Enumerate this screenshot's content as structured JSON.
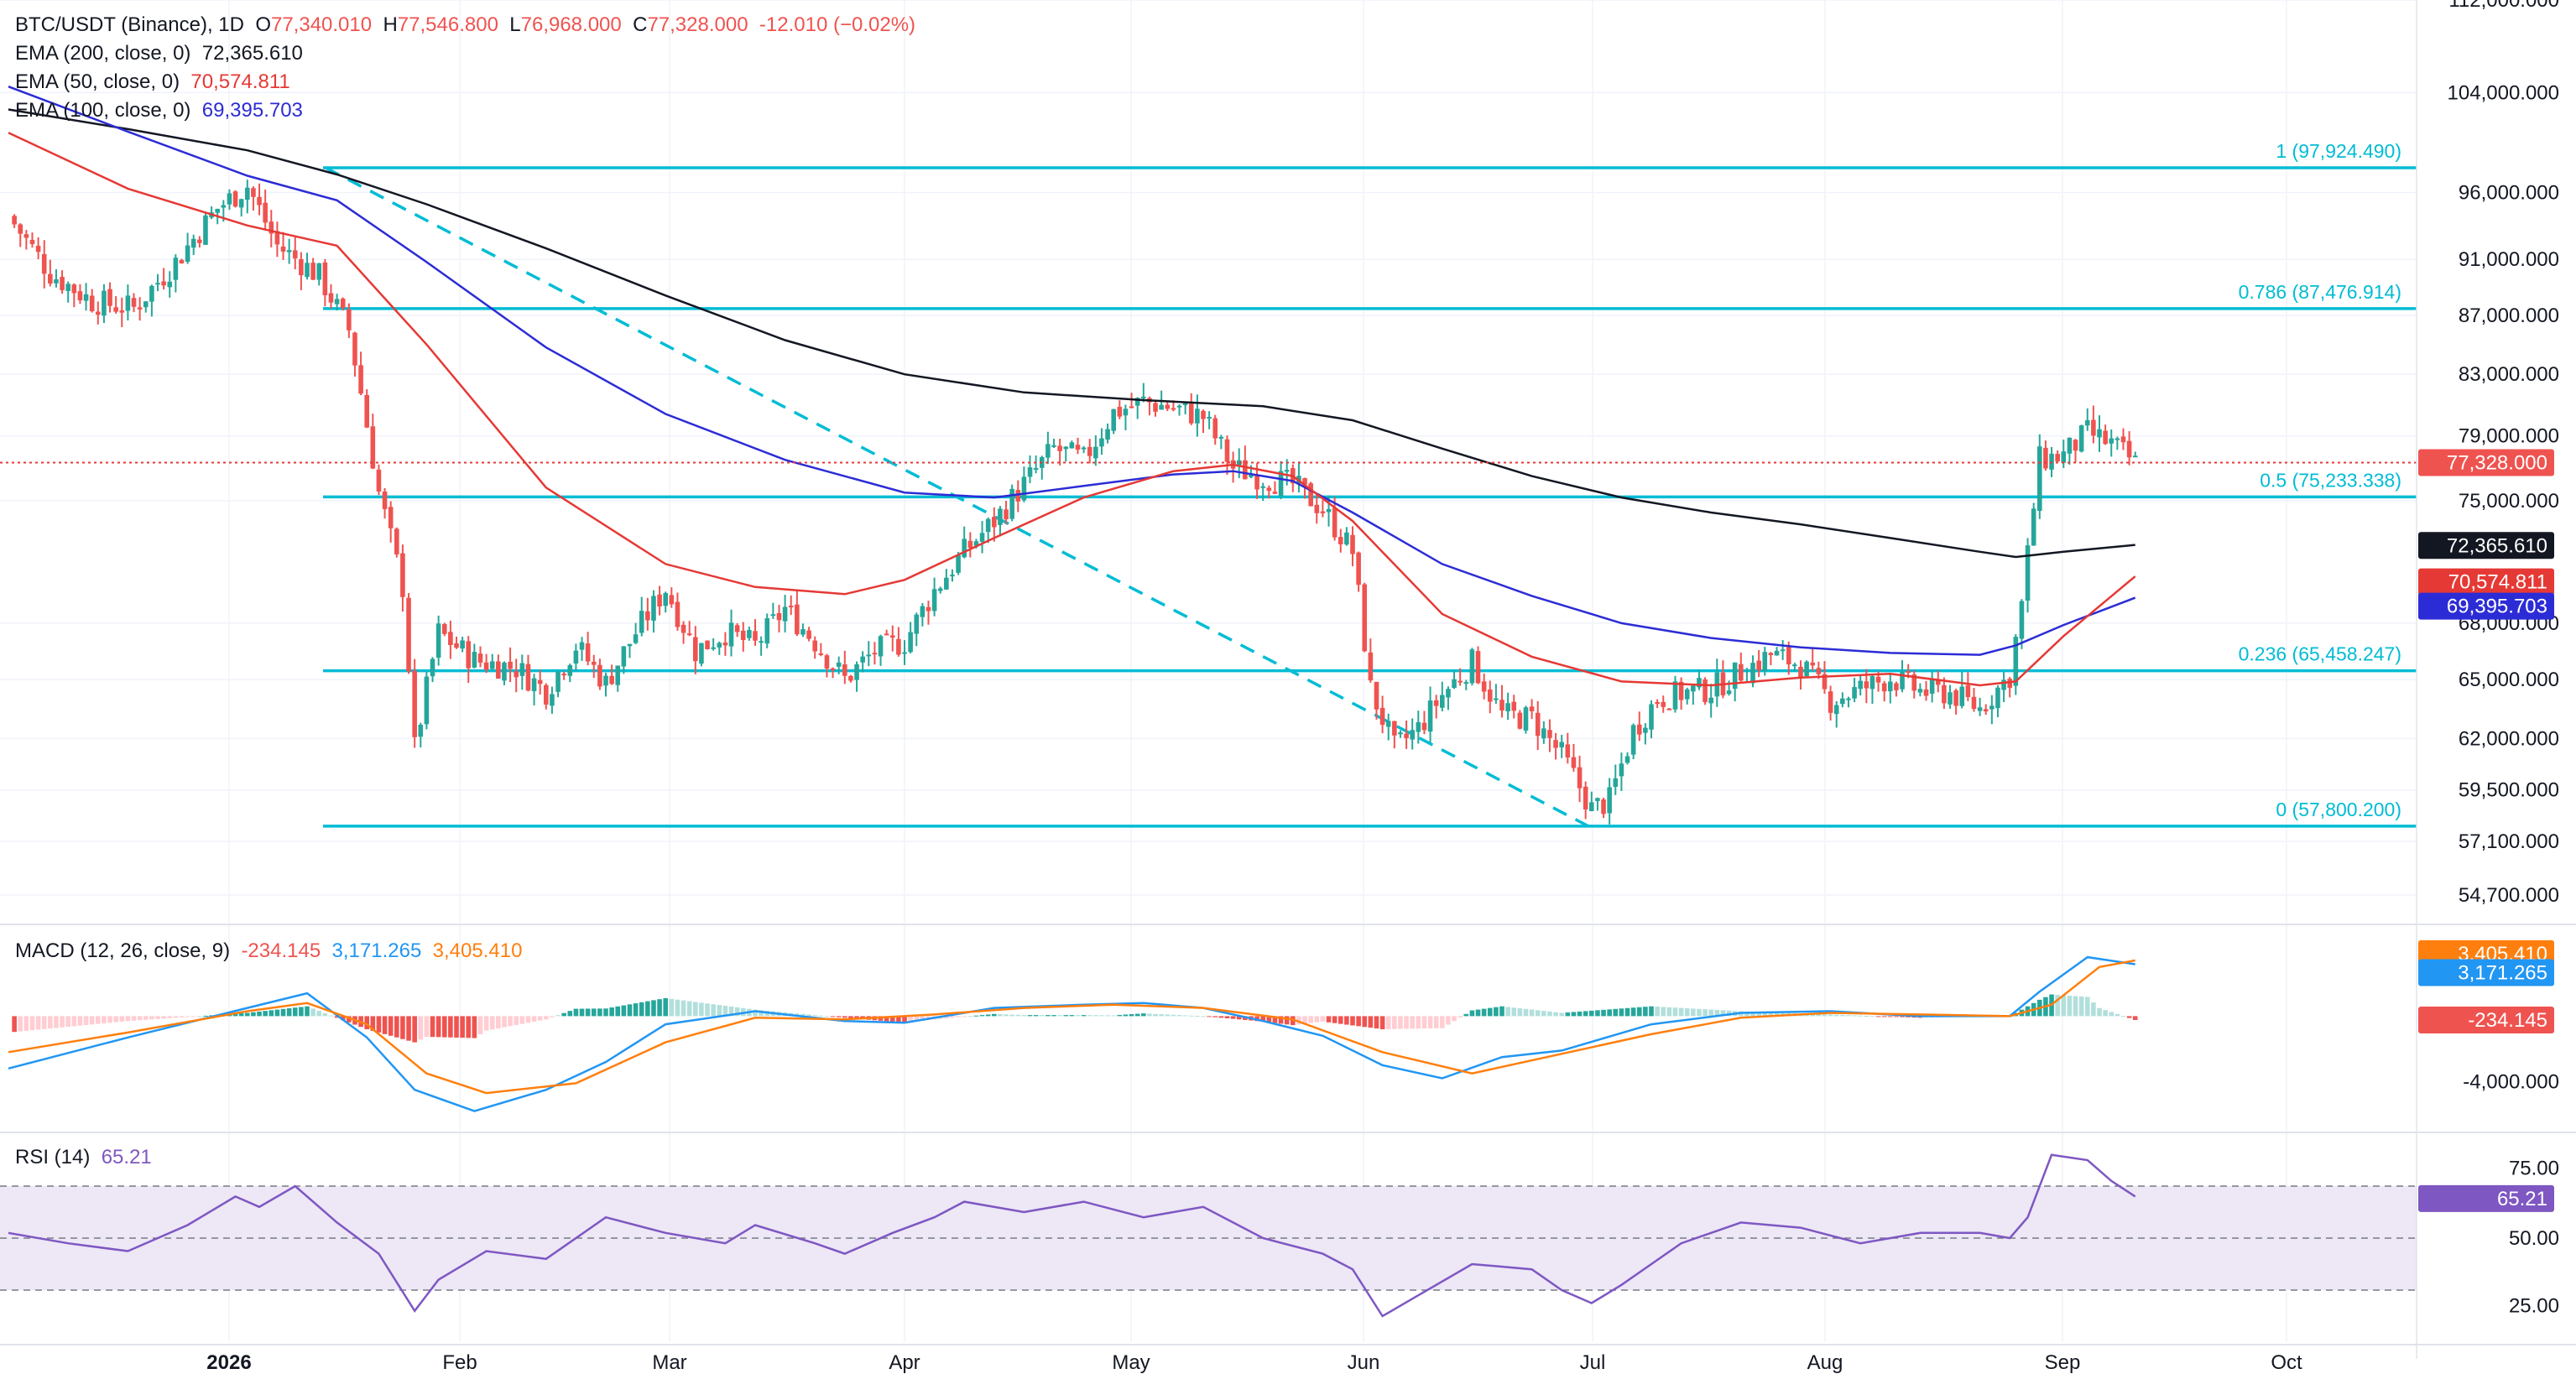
{
  "header": {
    "symbol": "BTC/USDT (Binance), 1D",
    "o_label": "O",
    "o": "77,340.010",
    "h_label": "H",
    "h": "77,546.800",
    "l_label": "L",
    "l": "76,968.000",
    "c_label": "C",
    "c": "77,328.000",
    "change": "-12.010 (−0.02%)"
  },
  "legend": {
    "ema200_label": "EMA (200, close, 0)",
    "ema200_value": "72,365.610",
    "ema50_label": "EMA (50, close, 0)",
    "ema50_value": "70,574.811",
    "ema100_label": "EMA (100, close, 0)",
    "ema100_value": "69,395.703",
    "macd_label": "MACD (12, 26, close, 9)",
    "macd_hist": "-234.145",
    "macd_line": "3,171.265",
    "macd_signal": "3,405.410",
    "rsi_label": "RSI (14)",
    "rsi_value": "65.21"
  },
  "colors": {
    "up": "#26a69a",
    "down": "#ef5350",
    "ema200": "#131722",
    "ema50": "#e53935",
    "ema100": "#2c2cd6",
    "fib": "#00bcd4",
    "macd_line": "#2196f3",
    "signal": "#ff7f0e",
    "rsi": "#7e57c2",
    "rsi_band": "#ede7f6"
  },
  "chart_data": {
    "type": "candlestick",
    "symbol": "BTC/USDT (Binance)",
    "interval": "1D",
    "x_labels": [
      "2026",
      "Feb",
      "Mar",
      "Apr",
      "May",
      "Jun",
      "Jul",
      "Aug",
      "Sep",
      "Oct"
    ],
    "price_axis_ticks": [
      "112,000.000",
      "104,000.000",
      "96,000.000",
      "91,000.000",
      "87,000.000",
      "83,000.000",
      "79,000.000",
      "75,000.000",
      "68,000.000",
      "65,000.000",
      "62,000.000",
      "59,500.000",
      "57,100.000",
      "54,700.000"
    ],
    "price_scale": "log",
    "ylim": [
      53500,
      112000
    ],
    "last_price": 77328.0,
    "last_price_label": "77,328.000",
    "ema_labels": {
      "ema200": "72,365.610",
      "ema50": "70,574.811",
      "ema100": "69,395.703"
    },
    "ema_values": {
      "ema200": 72365.61,
      "ema50": 70574.811,
      "ema100": 69395.703
    },
    "fibonacci": [
      {
        "label": "1 (97,924.490)",
        "value": 97924.49
      },
      {
        "label": "0.786 (87,476.914)",
        "value": 87476.914
      },
      {
        "label": "0.5 (75,233.338)",
        "value": 75233.338
      },
      {
        "label": "0.236 (65,458.247)",
        "value": 65458.247
      },
      {
        "label": "0 (57,800.200)",
        "value": 57800.2
      }
    ],
    "trendline": {
      "from": {
        "date": "Jan 15",
        "price": 97924
      },
      "to": {
        "date": "Jun 30",
        "price": 57800
      }
    },
    "close_path": [
      [
        0,
        94200
      ],
      [
        7,
        90000
      ],
      [
        14,
        88000
      ],
      [
        21,
        87500
      ],
      [
        28,
        90800
      ],
      [
        35,
        94800
      ],
      [
        40,
        96500
      ],
      [
        45,
        92000
      ],
      [
        52,
        89800
      ],
      [
        57,
        86000
      ],
      [
        62,
        75500
      ],
      [
        66,
        70000
      ],
      [
        68,
        61500
      ],
      [
        72,
        67500
      ],
      [
        78,
        66000
      ],
      [
        85,
        65600
      ],
      [
        90,
        64400
      ],
      [
        95,
        66800
      ],
      [
        100,
        64800
      ],
      [
        105,
        67500
      ],
      [
        110,
        69900
      ],
      [
        115,
        66500
      ],
      [
        120,
        67500
      ],
      [
        125,
        66800
      ],
      [
        130,
        68800
      ],
      [
        135,
        67000
      ],
      [
        140,
        65000
      ],
      [
        145,
        66500
      ],
      [
        150,
        67000
      ],
      [
        155,
        69800
      ],
      [
        160,
        72000
      ],
      [
        165,
        73800
      ],
      [
        170,
        76000
      ],
      [
        175,
        78200
      ],
      [
        180,
        77500
      ],
      [
        185,
        80500
      ],
      [
        190,
        81200
      ],
      [
        195,
        80800
      ],
      [
        200,
        80200
      ],
      [
        205,
        77000
      ],
      [
        210,
        76400
      ],
      [
        215,
        76000
      ],
      [
        220,
        74500
      ],
      [
        225,
        72000
      ],
      [
        228,
        64500
      ],
      [
        232,
        61500
      ],
      [
        236,
        62500
      ],
      [
        240,
        64200
      ],
      [
        245,
        65900
      ],
      [
        250,
        63200
      ],
      [
        255,
        63000
      ],
      [
        260,
        61200
      ],
      [
        265,
        58600
      ],
      [
        268,
        59000
      ],
      [
        272,
        62400
      ],
      [
        276,
        64000
      ],
      [
        280,
        64300
      ],
      [
        285,
        64500
      ],
      [
        290,
        65400
      ],
      [
        295,
        66300
      ],
      [
        300,
        65800
      ],
      [
        305,
        63900
      ],
      [
        310,
        64500
      ],
      [
        315,
        65100
      ],
      [
        320,
        64400
      ],
      [
        325,
        64300
      ],
      [
        330,
        63500
      ],
      [
        335,
        65200
      ],
      [
        337,
        69000
      ],
      [
        340,
        77500
      ],
      [
        344,
        77800
      ],
      [
        348,
        79200
      ],
      [
        352,
        78500
      ],
      [
        356,
        77300
      ]
    ],
    "ema200_path": [
      [
        0,
        102600
      ],
      [
        20,
        101000
      ],
      [
        40,
        99300
      ],
      [
        55,
        97400
      ],
      [
        70,
        95100
      ],
      [
        90,
        91800
      ],
      [
        110,
        88400
      ],
      [
        130,
        85300
      ],
      [
        150,
        83000
      ],
      [
        170,
        81800
      ],
      [
        190,
        81300
      ],
      [
        210,
        80900
      ],
      [
        225,
        80000
      ],
      [
        240,
        78200
      ],
      [
        255,
        76500
      ],
      [
        270,
        75200
      ],
      [
        285,
        74300
      ],
      [
        300,
        73600
      ],
      [
        315,
        72800
      ],
      [
        330,
        72000
      ],
      [
        336,
        71700
      ],
      [
        344,
        72000
      ],
      [
        356,
        72400
      ]
    ],
    "ema100_path": [
      [
        0,
        104500
      ],
      [
        20,
        100800
      ],
      [
        40,
        97300
      ],
      [
        55,
        95400
      ],
      [
        70,
        90800
      ],
      [
        90,
        84800
      ],
      [
        110,
        80400
      ],
      [
        130,
        77500
      ],
      [
        150,
        75500
      ],
      [
        165,
        75200
      ],
      [
        180,
        75900
      ],
      [
        195,
        76600
      ],
      [
        205,
        76800
      ],
      [
        215,
        76200
      ],
      [
        225,
        74300
      ],
      [
        240,
        71300
      ],
      [
        255,
        69500
      ],
      [
        270,
        68000
      ],
      [
        285,
        67200
      ],
      [
        300,
        66700
      ],
      [
        315,
        66400
      ],
      [
        330,
        66300
      ],
      [
        336,
        66800
      ],
      [
        344,
        67900
      ],
      [
        356,
        69400
      ]
    ],
    "ema50_path": [
      [
        0,
        100700
      ],
      [
        20,
        96300
      ],
      [
        40,
        93500
      ],
      [
        55,
        92000
      ],
      [
        70,
        85000
      ],
      [
        90,
        75800
      ],
      [
        110,
        71300
      ],
      [
        125,
        70000
      ],
      [
        140,
        69600
      ],
      [
        150,
        70400
      ],
      [
        165,
        72800
      ],
      [
        180,
        75200
      ],
      [
        195,
        76800
      ],
      [
        205,
        77200
      ],
      [
        215,
        76500
      ],
      [
        225,
        73800
      ],
      [
        240,
        68500
      ],
      [
        255,
        66200
      ],
      [
        270,
        64900
      ],
      [
        285,
        64700
      ],
      [
        300,
        65100
      ],
      [
        315,
        65300
      ],
      [
        330,
        64700
      ],
      [
        336,
        64900
      ],
      [
        344,
        67300
      ],
      [
        356,
        70600
      ]
    ],
    "macd": {
      "ticks": [
        "3,405.410",
        "3,171.265",
        "-234.145",
        "-4,000.000"
      ],
      "macd_line": 3171.265,
      "signal": 3405.41,
      "histogram": -234.145,
      "ylim": [
        -7000,
        5400
      ],
      "macd_path": [
        [
          0,
          -3200
        ],
        [
          20,
          -1300
        ],
        [
          40,
          500
        ],
        [
          50,
          1400
        ],
        [
          60,
          -1300
        ],
        [
          68,
          -4500
        ],
        [
          78,
          -5800
        ],
        [
          90,
          -4500
        ],
        [
          100,
          -2800
        ],
        [
          110,
          -500
        ],
        [
          125,
          300
        ],
        [
          140,
          -300
        ],
        [
          150,
          -400
        ],
        [
          165,
          500
        ],
        [
          180,
          700
        ],
        [
          190,
          800
        ],
        [
          200,
          500
        ],
        [
          210,
          -300
        ],
        [
          220,
          -1200
        ],
        [
          230,
          -3000
        ],
        [
          240,
          -3800
        ],
        [
          250,
          -2500
        ],
        [
          260,
          -2100
        ],
        [
          275,
          -500
        ],
        [
          290,
          200
        ],
        [
          305,
          300
        ],
        [
          320,
          0
        ],
        [
          335,
          0
        ],
        [
          340,
          1500
        ],
        [
          348,
          3600
        ],
        [
          356,
          3171
        ]
      ],
      "signal_path": [
        [
          0,
          -2200
        ],
        [
          20,
          -1000
        ],
        [
          40,
          300
        ],
        [
          50,
          800
        ],
        [
          60,
          -500
        ],
        [
          70,
          -3500
        ],
        [
          80,
          -4700
        ],
        [
          95,
          -4100
        ],
        [
          110,
          -1600
        ],
        [
          125,
          -100
        ],
        [
          140,
          -200
        ],
        [
          155,
          100
        ],
        [
          170,
          500
        ],
        [
          185,
          700
        ],
        [
          200,
          500
        ],
        [
          215,
          -200
        ],
        [
          230,
          -2200
        ],
        [
          245,
          -3500
        ],
        [
          260,
          -2300
        ],
        [
          275,
          -1100
        ],
        [
          290,
          -100
        ],
        [
          305,
          200
        ],
        [
          320,
          100
        ],
        [
          335,
          0
        ],
        [
          342,
          700
        ],
        [
          350,
          3000
        ],
        [
          356,
          3405
        ]
      ]
    },
    "rsi": {
      "ticks": [
        "75.00",
        "50.00",
        "25.00"
      ],
      "value": 65.21,
      "overbought": 70,
      "middle": 50,
      "oversold": 30,
      "ylim": [
        10,
        90
      ],
      "path": [
        [
          0,
          52
        ],
        [
          10,
          48
        ],
        [
          20,
          45
        ],
        [
          30,
          55
        ],
        [
          38,
          66
        ],
        [
          42,
          62
        ],
        [
          48,
          70
        ],
        [
          55,
          56
        ],
        [
          62,
          44
        ],
        [
          68,
          22
        ],
        [
          72,
          34
        ],
        [
          80,
          45
        ],
        [
          90,
          42
        ],
        [
          100,
          58
        ],
        [
          110,
          52
        ],
        [
          120,
          48
        ],
        [
          125,
          55
        ],
        [
          135,
          48
        ],
        [
          140,
          44
        ],
        [
          148,
          52
        ],
        [
          155,
          58
        ],
        [
          160,
          64
        ],
        [
          170,
          60
        ],
        [
          180,
          64
        ],
        [
          190,
          58
        ],
        [
          200,
          62
        ],
        [
          210,
          50
        ],
        [
          220,
          44
        ],
        [
          225,
          38
        ],
        [
          230,
          20
        ],
        [
          236,
          28
        ],
        [
          245,
          40
        ],
        [
          255,
          38
        ],
        [
          260,
          30
        ],
        [
          265,
          25
        ],
        [
          270,
          32
        ],
        [
          280,
          48
        ],
        [
          290,
          56
        ],
        [
          300,
          54
        ],
        [
          310,
          48
        ],
        [
          320,
          52
        ],
        [
          330,
          52
        ],
        [
          335,
          50
        ],
        [
          338,
          58
        ],
        [
          342,
          82
        ],
        [
          348,
          80
        ],
        [
          352,
          72
        ],
        [
          356,
          66
        ]
      ]
    }
  }
}
